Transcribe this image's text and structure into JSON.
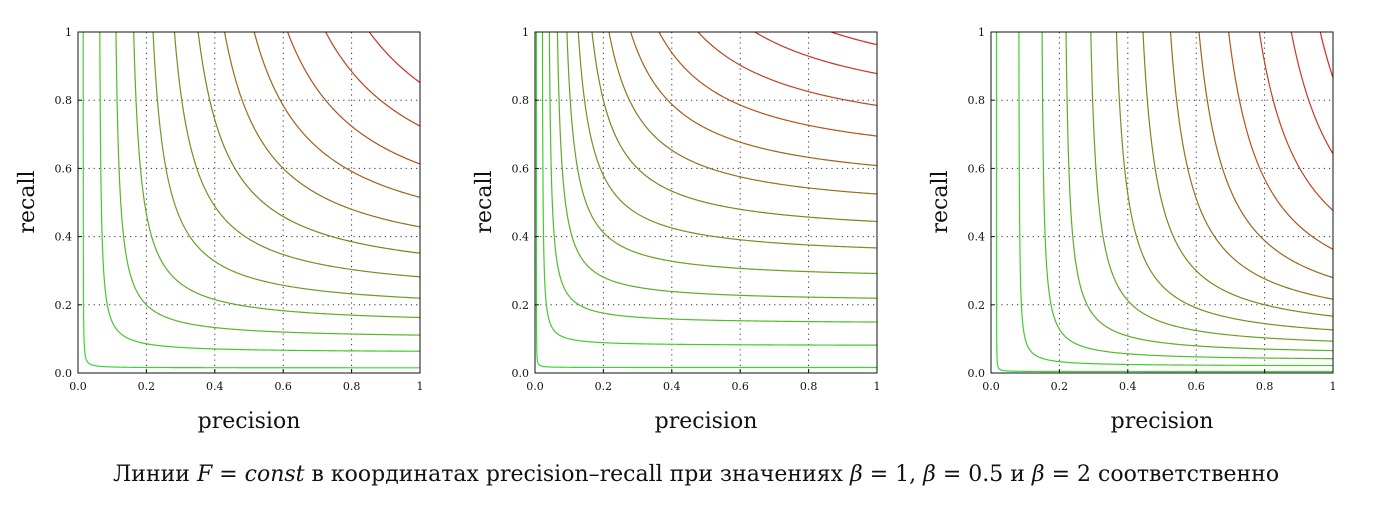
{
  "chart_data": [
    {
      "type": "line",
      "beta": 1,
      "xlabel": "precision",
      "ylabel": "recall",
      "xlim": [
        0,
        1
      ],
      "ylim": [
        0,
        1
      ],
      "xticks": [
        "0.0",
        "0.2",
        "0.4",
        "0.6",
        "0.8",
        "1"
      ],
      "yticks": [
        "0.0",
        "0.2",
        "0.4",
        "0.6",
        "0.8",
        "1"
      ],
      "grid": true,
      "series": [
        {
          "F": 0.03
        },
        {
          "F": 0.12
        },
        {
          "F": 0.2
        },
        {
          "F": 0.28
        },
        {
          "F": 0.36
        },
        {
          "F": 0.44
        },
        {
          "F": 0.52
        },
        {
          "F": 0.6
        },
        {
          "F": 0.68
        },
        {
          "F": 0.76
        },
        {
          "F": 0.84
        },
        {
          "F": 0.92
        }
      ]
    },
    {
      "type": "line",
      "beta": 0.5,
      "xlabel": "precision",
      "ylabel": "recall",
      "xlim": [
        0,
        1
      ],
      "ylim": [
        0,
        1
      ],
      "xticks": [
        "0.0",
        "0.2",
        "0.4",
        "0.6",
        "0.8",
        "1"
      ],
      "yticks": [
        "0.0",
        "0.2",
        "0.4",
        "0.6",
        "0.8",
        "1"
      ],
      "grid": true,
      "series": [
        {
          "F": 0.02
        },
        {
          "F": 0.1
        },
        {
          "F": 0.18
        },
        {
          "F": 0.26
        },
        {
          "F": 0.34
        },
        {
          "F": 0.42
        },
        {
          "F": 0.5
        },
        {
          "F": 0.58
        },
        {
          "F": 0.66
        },
        {
          "F": 0.74
        },
        {
          "F": 0.82
        },
        {
          "F": 0.9
        },
        {
          "F": 0.97
        }
      ]
    },
    {
      "type": "line",
      "beta": 2,
      "xlabel": "precision",
      "ylabel": "recall",
      "xlim": [
        0,
        1
      ],
      "ylim": [
        0,
        1
      ],
      "xticks": [
        "0.0",
        "0.2",
        "0.4",
        "0.6",
        "0.8",
        "1"
      ],
      "yticks": [
        "0.0",
        "0.2",
        "0.4",
        "0.6",
        "0.8",
        "1"
      ],
      "grid": true,
      "series": [
        {
          "F": 0.02
        },
        {
          "F": 0.1
        },
        {
          "F": 0.18
        },
        {
          "F": 0.26
        },
        {
          "F": 0.34
        },
        {
          "F": 0.42
        },
        {
          "F": 0.5
        },
        {
          "F": 0.58
        },
        {
          "F": 0.66
        },
        {
          "F": 0.74
        },
        {
          "F": 0.82
        },
        {
          "F": 0.9
        },
        {
          "F": 0.97
        }
      ]
    }
  ],
  "caption": {
    "prefix": "Линии ",
    "eq_left": "F",
    "eq_mid": " = ",
    "eq_right": "const",
    "text1": " в координатах precision–recall при значениях ",
    "beta_sym": "β",
    "b1": " = 1, ",
    "b2": " = 0.5 и ",
    "b3": " = 2 соответственно"
  },
  "colors": {
    "low": "#33dd33",
    "mid": "#8a7a1a",
    "high": "#dd2222",
    "grid": "#333333",
    "axis": "#111111"
  }
}
